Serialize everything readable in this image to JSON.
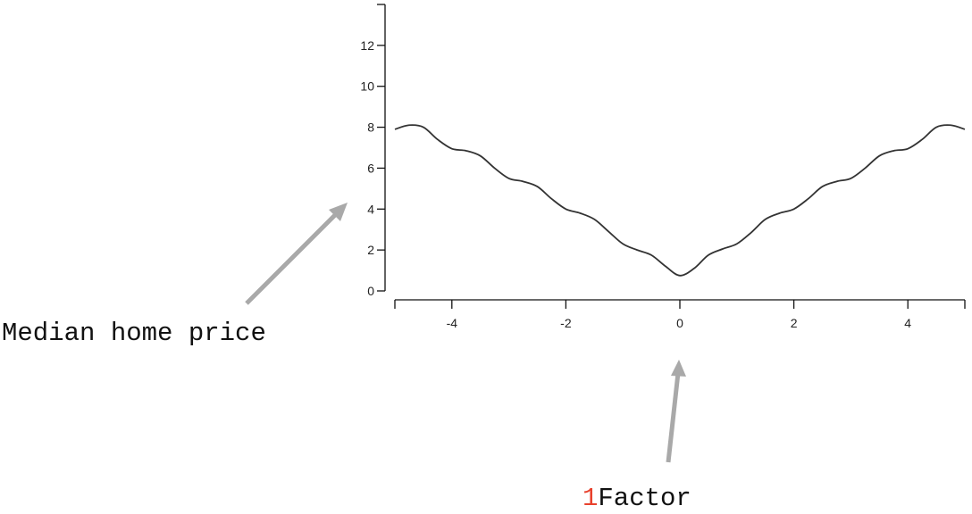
{
  "chart_data": {
    "type": "line",
    "title": "",
    "xlabel": "",
    "ylabel": "",
    "xlim": [
      -5,
      5
    ],
    "ylim": [
      0,
      14
    ],
    "x_ticks": [
      -4,
      -2,
      0,
      2,
      4
    ],
    "y_ticks": [
      0,
      2,
      4,
      6,
      8,
      10,
      12
    ],
    "grid": false,
    "series": [
      {
        "color": "#333333",
        "x": [
          -5.0,
          -4.75,
          -4.5,
          -4.25,
          -4.0,
          -3.75,
          -3.5,
          -3.25,
          -3.0,
          -2.75,
          -2.5,
          -2.25,
          -2.0,
          -1.75,
          -1.5,
          -1.25,
          -1.0,
          -0.75,
          -0.5,
          -0.25,
          0.0,
          0.25,
          0.5,
          0.75,
          1.0,
          1.25,
          1.5,
          1.75,
          2.0,
          2.25,
          2.5,
          2.75,
          3.0,
          3.25,
          3.5,
          3.75,
          4.0,
          4.25,
          4.5,
          4.75,
          5.0
        ],
        "y": [
          7.9,
          8.1,
          8.0,
          7.4,
          6.95,
          6.85,
          6.6,
          6.0,
          5.5,
          5.35,
          5.1,
          4.5,
          4.0,
          3.8,
          3.5,
          2.9,
          2.3,
          2.0,
          1.75,
          1.2,
          0.75,
          1.1,
          1.75,
          2.05,
          2.3,
          2.85,
          3.5,
          3.8,
          4.0,
          4.5,
          5.1,
          5.35,
          5.5,
          6.0,
          6.6,
          6.85,
          6.95,
          7.4,
          8.0,
          8.1,
          7.9
        ]
      }
    ],
    "annotations": [
      {
        "text": "Median home price"
      },
      {
        "number": "1",
        "text": "Factor"
      }
    ],
    "annotation_arrow_color": "#a9a9a9",
    "annotation_number_color": "#e8412c"
  }
}
